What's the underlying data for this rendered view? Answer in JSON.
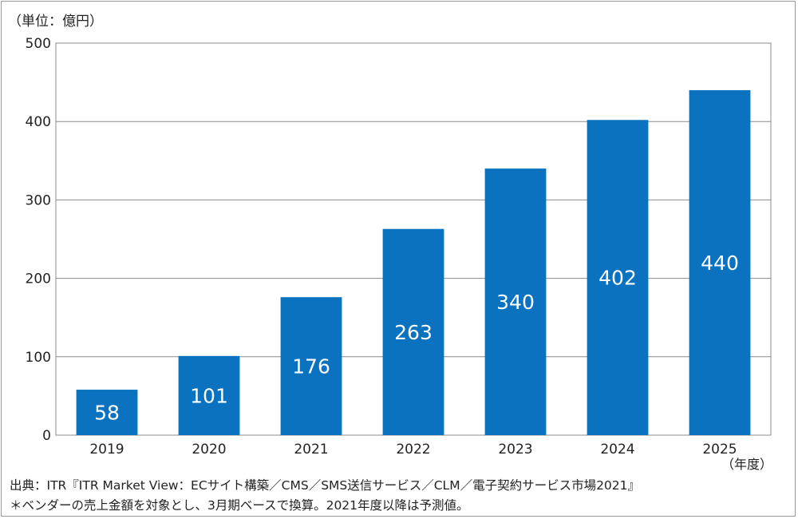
{
  "chart_data": {
    "type": "bar",
    "unit_label": "（単位：億円）",
    "x_unit_label": "（年度）",
    "categories": [
      "2019",
      "2020",
      "2021",
      "2022",
      "2023",
      "2024",
      "2025"
    ],
    "values": [
      58,
      101,
      176,
      263,
      340,
      402,
      440
    ],
    "data_labels": [
      "58",
      "101",
      "176",
      "263",
      "340",
      "402",
      "440"
    ],
    "ylim": [
      0,
      500
    ],
    "yticks": [
      0,
      100,
      200,
      300,
      400,
      500
    ],
    "grid": true,
    "bar_color": "#0a72be",
    "label_color": "#ffffff"
  },
  "notes": {
    "source": "出典：ITR『ITR Market View：ECサイト構築／CMS／SMS送信サービス／CLM／電子契約サービス市場2021』",
    "footnote": "＊ベンダーの売上金額を対象とし、3月期ベースで換算。2021年度以降は予測値。"
  }
}
